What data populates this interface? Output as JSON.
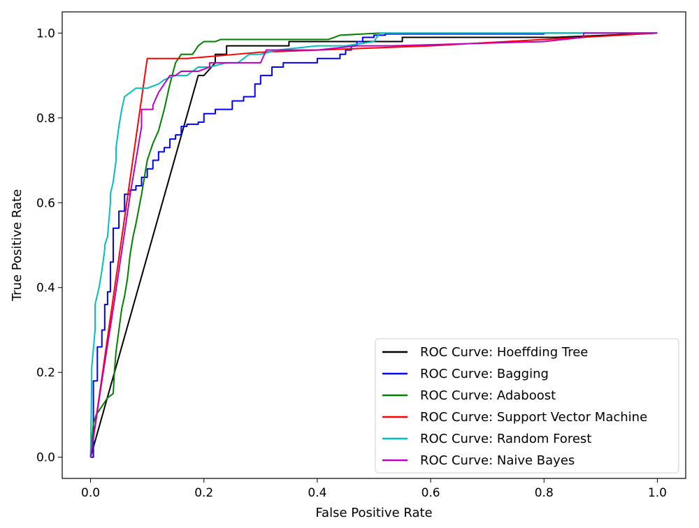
{
  "chart_data": {
    "type": "line",
    "title": "",
    "xlabel": "False Positive Rate",
    "ylabel": "True Positive Rate",
    "xlim": [
      -0.05,
      1.05
    ],
    "ylim": [
      -0.05,
      1.05
    ],
    "xticks": [
      0.0,
      0.2,
      0.4,
      0.6,
      0.8,
      1.0
    ],
    "yticks": [
      0.0,
      0.2,
      0.4,
      0.6,
      0.8,
      1.0
    ],
    "tick_labels_x": [
      "0.0",
      "0.2",
      "0.4",
      "0.6",
      "0.8",
      "1.0"
    ],
    "tick_labels_y": [
      "0.0",
      "0.2",
      "0.4",
      "0.6",
      "0.8",
      "1.0"
    ],
    "grid": false,
    "legend_position": "lower-right",
    "series": [
      {
        "name": "ROC Curve: Hoeffding Tree",
        "color": "#000000",
        "x": [
          0,
          0.19,
          0.2,
          0.22,
          0.22,
          0.24,
          0.24,
          0.26,
          0.35,
          0.35,
          0.55,
          0.55,
          0.82,
          1.0
        ],
        "y": [
          0,
          0.9,
          0.9,
          0.93,
          0.95,
          0.95,
          0.97,
          0.97,
          0.97,
          0.98,
          0.98,
          0.99,
          0.99,
          1.0
        ]
      },
      {
        "name": "ROC Curve: Bagging",
        "color": "#0000ff",
        "x": [
          0,
          0.005,
          0.005,
          0.012,
          0.012,
          0.02,
          0.02,
          0.025,
          0.025,
          0.03,
          0.03,
          0.035,
          0.035,
          0.04,
          0.04,
          0.045,
          0.045,
          0.05,
          0.05,
          0.06,
          0.06,
          0.07,
          0.07,
          0.08,
          0.08,
          0.09,
          0.09,
          0.1,
          0.1,
          0.11,
          0.11,
          0.12,
          0.12,
          0.13,
          0.13,
          0.14,
          0.14,
          0.15,
          0.15,
          0.16,
          0.16,
          0.17,
          0.17,
          0.19,
          0.19,
          0.2,
          0.2,
          0.22,
          0.22,
          0.25,
          0.25,
          0.27,
          0.27,
          0.29,
          0.29,
          0.3,
          0.3,
          0.32,
          0.32,
          0.34,
          0.34,
          0.4,
          0.4,
          0.44,
          0.44,
          0.45,
          0.45,
          0.46,
          0.46,
          0.47,
          0.47,
          0.48,
          0.48,
          0.5,
          0.5,
          0.52,
          0.52,
          0.8,
          0.8,
          1.0
        ],
        "y": [
          0,
          0,
          0.18,
          0.18,
          0.26,
          0.26,
          0.3,
          0.3,
          0.36,
          0.36,
          0.39,
          0.39,
          0.46,
          0.46,
          0.54,
          0.54,
          0.54,
          0.54,
          0.58,
          0.58,
          0.62,
          0.62,
          0.63,
          0.63,
          0.64,
          0.64,
          0.66,
          0.66,
          0.68,
          0.68,
          0.7,
          0.7,
          0.72,
          0.72,
          0.73,
          0.73,
          0.75,
          0.75,
          0.76,
          0.76,
          0.78,
          0.78,
          0.785,
          0.785,
          0.79,
          0.79,
          0.81,
          0.81,
          0.82,
          0.82,
          0.84,
          0.84,
          0.85,
          0.85,
          0.88,
          0.88,
          0.9,
          0.9,
          0.92,
          0.92,
          0.93,
          0.93,
          0.94,
          0.94,
          0.95,
          0.95,
          0.96,
          0.96,
          0.97,
          0.97,
          0.98,
          0.98,
          0.99,
          0.99,
          0.995,
          0.995,
          0.998,
          0.998,
          1.0,
          1.0
        ]
      },
      {
        "name": "ROC Curve: Adaboost",
        "color": "#008000",
        "x": [
          0,
          0.005,
          0.01,
          0.02,
          0.03,
          0.04,
          0.042,
          0.045,
          0.05,
          0.055,
          0.06,
          0.065,
          0.07,
          0.075,
          0.08,
          0.09,
          0.1,
          0.11,
          0.12,
          0.13,
          0.14,
          0.15,
          0.16,
          0.17,
          0.18,
          0.19,
          0.2,
          0.21,
          0.22,
          0.23,
          0.28,
          0.42,
          0.44,
          0.51,
          1.0
        ],
        "y": [
          0,
          0.08,
          0.1,
          0.12,
          0.14,
          0.15,
          0.2,
          0.25,
          0.3,
          0.35,
          0.38,
          0.42,
          0.48,
          0.52,
          0.55,
          0.62,
          0.7,
          0.74,
          0.77,
          0.82,
          0.88,
          0.93,
          0.95,
          0.95,
          0.95,
          0.97,
          0.98,
          0.98,
          0.98,
          0.985,
          0.985,
          0.985,
          0.995,
          1.0,
          1.0
        ]
      },
      {
        "name": "ROC Curve: Support Vector Machine",
        "color": "#ff0000",
        "x": [
          0,
          0.1,
          0.17,
          0.3,
          0.6,
          1.0
        ],
        "y": [
          0,
          0.94,
          0.94,
          0.955,
          0.97,
          1.0
        ]
      },
      {
        "name": "ROC Curve: Random Forest",
        "color": "#00bfbf",
        "x": [
          0,
          0.002,
          0.002,
          0.008,
          0.008,
          0.015,
          0.02,
          0.025,
          0.025,
          0.03,
          0.035,
          0.035,
          0.04,
          0.045,
          0.045,
          0.05,
          0.055,
          0.06,
          0.07,
          0.08,
          0.09,
          0.1,
          0.12,
          0.13,
          0.15,
          0.17,
          0.19,
          0.21,
          0.24,
          0.26,
          0.28,
          0.3,
          0.33,
          0.4,
          0.45,
          0.5,
          0.51,
          1.0
        ],
        "y": [
          0,
          0.18,
          0.21,
          0.3,
          0.36,
          0.4,
          0.44,
          0.49,
          0.5,
          0.52,
          0.6,
          0.62,
          0.65,
          0.7,
          0.73,
          0.78,
          0.82,
          0.85,
          0.86,
          0.87,
          0.87,
          0.87,
          0.88,
          0.89,
          0.9,
          0.9,
          0.92,
          0.92,
          0.93,
          0.93,
          0.95,
          0.95,
          0.96,
          0.97,
          0.97,
          0.98,
          1.0,
          1.0
        ]
      },
      {
        "name": "ROC Curve: Naive Bayes",
        "color": "#bf00bf",
        "x": [
          0,
          0.02,
          0.04,
          0.06,
          0.07,
          0.08,
          0.09,
          0.09,
          0.11,
          0.11,
          0.12,
          0.13,
          0.14,
          0.15,
          0.16,
          0.19,
          0.21,
          0.21,
          0.26,
          0.27,
          0.3,
          0.31,
          0.4,
          0.47,
          0.5,
          0.53,
          0.8,
          0.87,
          0.87,
          1.0
        ],
        "y": [
          0,
          0.18,
          0.35,
          0.53,
          0.62,
          0.7,
          0.78,
          0.82,
          0.82,
          0.83,
          0.86,
          0.88,
          0.9,
          0.9,
          0.91,
          0.91,
          0.92,
          0.93,
          0.93,
          0.93,
          0.93,
          0.96,
          0.96,
          0.97,
          0.97,
          0.97,
          0.98,
          0.99,
          1.0,
          1.0
        ]
      }
    ]
  }
}
